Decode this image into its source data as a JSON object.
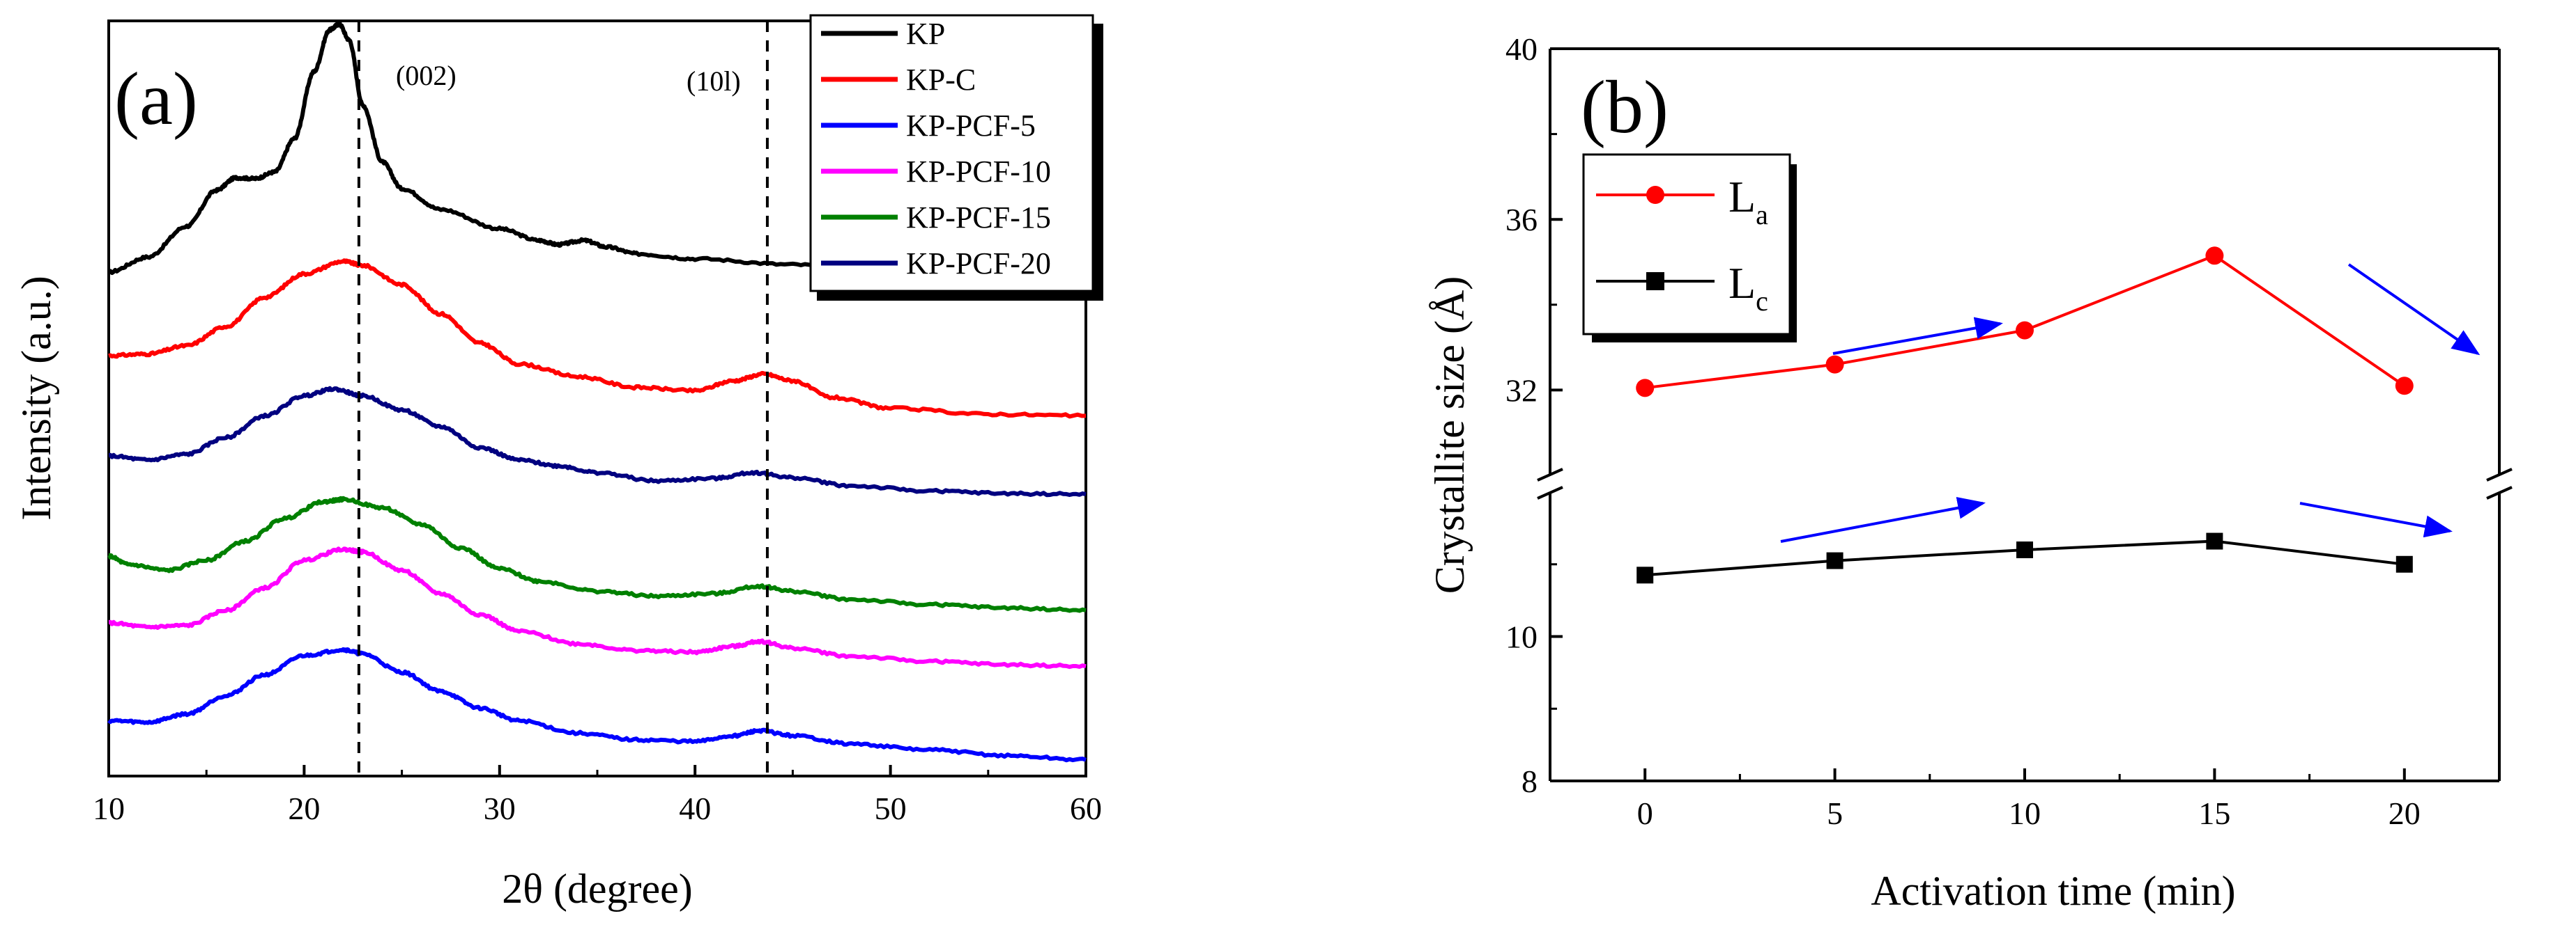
{
  "chart_data": [
    {
      "type": "line",
      "panel": "(a)",
      "xlabel": "2θ (degree)",
      "ylabel": "Intensity (a.u.)",
      "xlim": [
        10,
        60
      ],
      "xticks": [
        10,
        20,
        30,
        40,
        50,
        60
      ],
      "annotations": [
        {
          "text": "(002)",
          "x": 22.8
        },
        {
          "text": "(10l)",
          "x": 43.7
        }
      ],
      "legend": [
        "KP",
        "KP-C",
        "KP-PCF-5",
        "KP-PCF-10",
        "KP-PCF-15",
        "KP-PCF-20"
      ],
      "series": [
        {
          "name": "KP",
          "color": "#000000",
          "offset": 5.45,
          "points": [
            [
              10,
              0.0
            ],
            [
              12,
              0.18
            ],
            [
              14,
              0.55
            ],
            [
              15.5,
              0.98
            ],
            [
              16.5,
              1.13
            ],
            [
              17.5,
              1.12
            ],
            [
              18.5,
              1.2
            ],
            [
              19.5,
              1.6
            ],
            [
              20.5,
              2.4
            ],
            [
              21.3,
              2.9
            ],
            [
              21.8,
              2.97
            ],
            [
              22.3,
              2.78
            ],
            [
              23,
              2.0
            ],
            [
              24,
              1.32
            ],
            [
              25,
              1.0
            ],
            [
              27,
              0.75
            ],
            [
              30,
              0.52
            ],
            [
              32,
              0.38
            ],
            [
              33,
              0.33
            ],
            [
              34.3,
              0.38
            ],
            [
              35.5,
              0.3
            ],
            [
              37,
              0.22
            ],
            [
              40,
              0.16
            ],
            [
              45,
              0.09
            ],
            [
              50,
              0.0
            ],
            [
              55,
              -0.1
            ],
            [
              60,
              -0.17
            ]
          ]
        },
        {
          "name": "KP-C",
          "color": "#ff0000",
          "offset": 4.45,
          "points": [
            [
              10,
              0.0
            ],
            [
              12,
              0.02
            ],
            [
              14,
              0.12
            ],
            [
              16,
              0.35
            ],
            [
              18,
              0.7
            ],
            [
              20,
              0.98
            ],
            [
              22,
              1.13
            ],
            [
              23,
              1.08
            ],
            [
              25,
              0.85
            ],
            [
              27,
              0.5
            ],
            [
              29,
              0.15
            ],
            [
              31,
              -0.1
            ],
            [
              34,
              -0.25
            ],
            [
              37,
              -0.38
            ],
            [
              40,
              -0.42
            ],
            [
              42,
              -0.3
            ],
            [
              43.5,
              -0.22
            ],
            [
              45,
              -0.3
            ],
            [
              47,
              -0.5
            ],
            [
              50,
              -0.63
            ],
            [
              55,
              -0.7
            ],
            [
              60,
              -0.72
            ]
          ]
        },
        {
          "name": "KP-PCF-20",
          "color": "#000080",
          "offset": 3.25,
          "points": [
            [
              10,
              0.0
            ],
            [
              12,
              -0.05
            ],
            [
              14,
              0.02
            ],
            [
              16,
              0.22
            ],
            [
              18,
              0.48
            ],
            [
              20,
              0.72
            ],
            [
              21.5,
              0.8
            ],
            [
              23,
              0.72
            ],
            [
              25,
              0.55
            ],
            [
              27,
              0.35
            ],
            [
              29,
              0.1
            ],
            [
              31,
              -0.05
            ],
            [
              33,
              -0.12
            ],
            [
              35,
              -0.2
            ],
            [
              38,
              -0.3
            ],
            [
              41,
              -0.27
            ],
            [
              43,
              -0.2
            ],
            [
              45,
              -0.26
            ],
            [
              48,
              -0.36
            ],
            [
              52,
              -0.42
            ],
            [
              56,
              -0.45
            ],
            [
              60,
              -0.46
            ]
          ]
        },
        {
          "name": "KP-PCF-15",
          "color": "#008000",
          "offset": 2.05,
          "points": [
            [
              10,
              0.0
            ],
            [
              11,
              -0.1
            ],
            [
              13,
              -0.17
            ],
            [
              15,
              -0.05
            ],
            [
              17,
              0.18
            ],
            [
              19,
              0.45
            ],
            [
              21,
              0.65
            ],
            [
              22,
              0.68
            ],
            [
              24,
              0.58
            ],
            [
              26,
              0.38
            ],
            [
              28,
              0.1
            ],
            [
              30,
              -0.15
            ],
            [
              32,
              -0.3
            ],
            [
              35,
              -0.42
            ],
            [
              38,
              -0.48
            ],
            [
              41,
              -0.45
            ],
            [
              43.3,
              -0.36
            ],
            [
              45,
              -0.42
            ],
            [
              48,
              -0.52
            ],
            [
              52,
              -0.58
            ],
            [
              56,
              -0.62
            ],
            [
              60,
              -0.65
            ]
          ]
        },
        {
          "name": "KP-PCF-10",
          "color": "#ff00ff",
          "offset": 1.25,
          "points": [
            [
              10,
              0.0
            ],
            [
              12,
              -0.05
            ],
            [
              14,
              -0.03
            ],
            [
              16,
              0.15
            ],
            [
              18,
              0.42
            ],
            [
              20,
              0.75
            ],
            [
              22,
              0.88
            ],
            [
              23,
              0.85
            ],
            [
              25,
              0.63
            ],
            [
              27,
              0.35
            ],
            [
              29,
              0.1
            ],
            [
              31,
              -0.1
            ],
            [
              34,
              -0.25
            ],
            [
              37,
              -0.33
            ],
            [
              40,
              -0.35
            ],
            [
              42,
              -0.28
            ],
            [
              43.3,
              -0.22
            ],
            [
              45,
              -0.3
            ],
            [
              48,
              -0.4
            ],
            [
              52,
              -0.46
            ],
            [
              56,
              -0.5
            ],
            [
              60,
              -0.52
            ]
          ]
        },
        {
          "name": "KP-PCF-5",
          "color": "#0000ff",
          "offset": 0.08,
          "points": [
            [
              10,
              0.0
            ],
            [
              12,
              -0.02
            ],
            [
              14,
              0.08
            ],
            [
              16,
              0.3
            ],
            [
              18,
              0.55
            ],
            [
              20,
              0.78
            ],
            [
              22,
              0.85
            ],
            [
              23,
              0.8
            ],
            [
              25,
              0.58
            ],
            [
              27,
              0.35
            ],
            [
              29,
              0.15
            ],
            [
              31,
              0.0
            ],
            [
              34,
              -0.15
            ],
            [
              37,
              -0.23
            ],
            [
              40,
              -0.25
            ],
            [
              42,
              -0.18
            ],
            [
              43.3,
              -0.12
            ],
            [
              45,
              -0.18
            ],
            [
              48,
              -0.28
            ],
            [
              52,
              -0.35
            ],
            [
              56,
              -0.42
            ],
            [
              60,
              -0.47
            ]
          ]
        }
      ]
    },
    {
      "type": "line",
      "panel": "(b)",
      "xlabel": "Activation time (min)",
      "ylabel": "Crystallite size (Å)",
      "xlim": [
        -2.5,
        22.5
      ],
      "xticks": [
        0,
        5,
        10,
        15,
        20
      ],
      "yticks": [
        8,
        10,
        32,
        36,
        40
      ],
      "broken_axis": {
        "lower_range": [
          8,
          12
        ],
        "upper_range": [
          30,
          40
        ]
      },
      "legend": [
        {
          "label": "L",
          "sub": "a",
          "color": "#ff0000",
          "marker": "circle"
        },
        {
          "label": "L",
          "sub": "c",
          "color": "#000000",
          "marker": "square"
        }
      ],
      "series": [
        {
          "name": "La",
          "color": "#ff0000",
          "marker": "circle",
          "x": [
            0,
            5,
            10,
            15,
            20
          ],
          "y": [
            32.05,
            32.6,
            33.4,
            35.15,
            32.1
          ]
        },
        {
          "name": "Lc",
          "color": "#000000",
          "marker": "square",
          "x": [
            0,
            5,
            10,
            15,
            20
          ],
          "y": [
            10.85,
            11.05,
            11.2,
            11.32,
            11.0
          ]
        }
      ],
      "arrow_color": "#0000ff"
    }
  ]
}
